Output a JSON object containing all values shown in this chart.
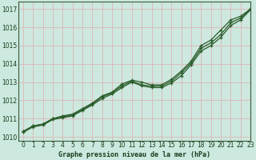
{
  "title": "Graphe pression niveau de la mer (hPa)",
  "bg_color": "#cce8df",
  "grid_color": "#ddbbbb",
  "line_color": "#2a5c2a",
  "marker_color": "#2a5c2a",
  "xlim": [
    -0.5,
    23
  ],
  "ylim": [
    1009.8,
    1017.4
  ],
  "yticks": [
    1010,
    1011,
    1012,
    1013,
    1014,
    1015,
    1016,
    1017
  ],
  "xticks": [
    0,
    1,
    2,
    3,
    4,
    5,
    6,
    7,
    8,
    9,
    10,
    11,
    12,
    13,
    14,
    15,
    16,
    17,
    18,
    19,
    20,
    21,
    22,
    23
  ],
  "hours": [
    0,
    1,
    2,
    3,
    4,
    5,
    6,
    7,
    8,
    9,
    10,
    11,
    12,
    13,
    14,
    15,
    16,
    17,
    18,
    19,
    20,
    21,
    22,
    23
  ],
  "line_main": [
    1010.3,
    1010.6,
    1010.7,
    1011.0,
    1011.1,
    1011.2,
    1011.5,
    1011.8,
    1012.2,
    1012.4,
    1012.8,
    1013.05,
    1012.85,
    1012.78,
    1012.78,
    1013.05,
    1013.5,
    1014.05,
    1014.85,
    1015.15,
    1015.6,
    1016.25,
    1016.5,
    1017.0
  ],
  "line_upper": [
    1010.3,
    1010.6,
    1010.7,
    1011.0,
    1011.15,
    1011.25,
    1011.55,
    1011.85,
    1012.25,
    1012.45,
    1012.9,
    1013.1,
    1013.0,
    1012.85,
    1012.85,
    1013.15,
    1013.6,
    1014.15,
    1015.0,
    1015.3,
    1015.85,
    1016.4,
    1016.6,
    1017.0
  ],
  "line_lower": [
    1010.25,
    1010.55,
    1010.65,
    1010.95,
    1011.05,
    1011.15,
    1011.45,
    1011.75,
    1012.1,
    1012.35,
    1012.7,
    1013.0,
    1012.8,
    1012.7,
    1012.7,
    1012.95,
    1013.35,
    1013.95,
    1014.7,
    1015.0,
    1015.45,
    1016.1,
    1016.4,
    1016.95
  ]
}
